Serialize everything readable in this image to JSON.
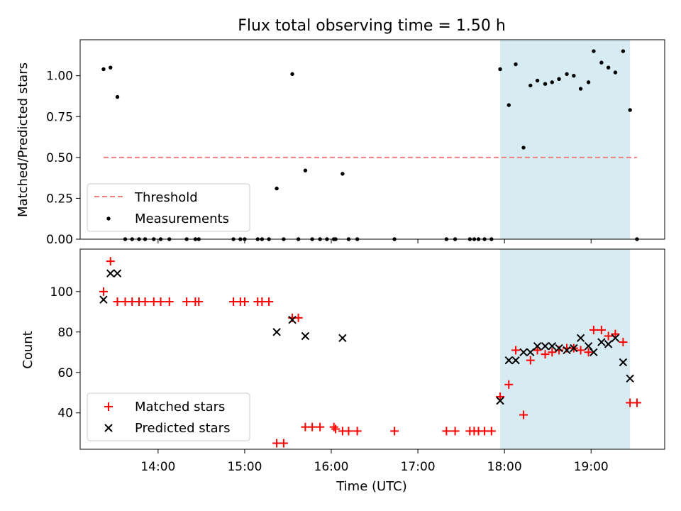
{
  "title": "Flux total observing time = 1.50 h",
  "colors": {
    "threshold": "#f08080",
    "shade": "#add8e6",
    "matched": "#ff0000",
    "predicted": "#000000",
    "measure": "#000000"
  },
  "chart_data": [
    {
      "type": "scatter",
      "ylabel": "Matched/Predicted stars",
      "xlim": [
        13.1,
        19.85
      ],
      "ylim": [
        0,
        1.22
      ],
      "yticks": [
        0,
        0.25,
        0.5,
        0.75,
        1.0
      ],
      "ytick_labels": [
        "0.00",
        "0.25",
        "0.50",
        "0.75",
        "1.00"
      ],
      "shaded_x_range": [
        17.95,
        19.45
      ],
      "threshold": {
        "label": "Threshold",
        "y": 0.5,
        "x_range": [
          13.37,
          19.53
        ]
      },
      "measurements_label": "Measurements",
      "measurements": [
        [
          13.37,
          1.04
        ],
        [
          13.45,
          1.05
        ],
        [
          13.53,
          0.87
        ],
        [
          13.62,
          0
        ],
        [
          13.7,
          0
        ],
        [
          13.78,
          0
        ],
        [
          13.85,
          0
        ],
        [
          13.95,
          0
        ],
        [
          14.03,
          0
        ],
        [
          14.13,
          0
        ],
        [
          14.33,
          0
        ],
        [
          14.43,
          0
        ],
        [
          14.47,
          0
        ],
        [
          14.87,
          0
        ],
        [
          14.95,
          0
        ],
        [
          15.0,
          0
        ],
        [
          15.15,
          0
        ],
        [
          15.2,
          0
        ],
        [
          15.28,
          0
        ],
        [
          15.37,
          0.31
        ],
        [
          15.45,
          0
        ],
        [
          15.55,
          1.01
        ],
        [
          15.62,
          0
        ],
        [
          15.7,
          0.42
        ],
        [
          15.78,
          0
        ],
        [
          15.87,
          0
        ],
        [
          15.95,
          0
        ],
        [
          16.03,
          0
        ],
        [
          16.05,
          0
        ],
        [
          16.13,
          0.4
        ],
        [
          16.2,
          0
        ],
        [
          16.3,
          0
        ],
        [
          16.73,
          0
        ],
        [
          17.33,
          0
        ],
        [
          17.43,
          0
        ],
        [
          17.6,
          0
        ],
        [
          17.65,
          0
        ],
        [
          17.7,
          0
        ],
        [
          17.77,
          0
        ],
        [
          17.85,
          0
        ],
        [
          17.95,
          1.04
        ],
        [
          18.05,
          0.82
        ],
        [
          18.13,
          1.07
        ],
        [
          18.22,
          0.56
        ],
        [
          18.3,
          0.94
        ],
        [
          18.38,
          0.97
        ],
        [
          18.47,
          0.95
        ],
        [
          18.55,
          0.96
        ],
        [
          18.63,
          0.98
        ],
        [
          18.72,
          1.01
        ],
        [
          18.8,
          1.0
        ],
        [
          18.88,
          0.92
        ],
        [
          18.97,
          0.96
        ],
        [
          19.03,
          1.15
        ],
        [
          19.12,
          1.08
        ],
        [
          19.2,
          1.05
        ],
        [
          19.28,
          1.02
        ],
        [
          19.37,
          1.15
        ],
        [
          19.45,
          0.79
        ],
        [
          19.53,
          0
        ]
      ],
      "legend": [
        "Threshold",
        "Measurements"
      ]
    },
    {
      "type": "scatter",
      "xlabel": "Time (UTC)",
      "ylabel": "Count",
      "xlim": [
        13.1,
        19.85
      ],
      "ylim": [
        22,
        121
      ],
      "yticks": [
        40,
        60,
        80,
        100
      ],
      "ytick_labels": [
        "40",
        "60",
        "80",
        "100"
      ],
      "xticks": [
        14,
        15,
        16,
        17,
        18,
        19
      ],
      "xtick_labels": [
        "14:00",
        "15:00",
        "16:00",
        "17:00",
        "18:00",
        "19:00"
      ],
      "shaded_x_range": [
        17.95,
        19.45
      ],
      "series": [
        {
          "name": "Matched stars",
          "marker": "+",
          "points": [
            [
              13.37,
              100
            ],
            [
              13.45,
              115
            ],
            [
              13.53,
              95
            ],
            [
              13.62,
              95
            ],
            [
              13.7,
              95
            ],
            [
              13.78,
              95
            ],
            [
              13.85,
              95
            ],
            [
              13.95,
              95
            ],
            [
              14.03,
              95
            ],
            [
              14.13,
              95
            ],
            [
              14.33,
              95
            ],
            [
              14.43,
              95
            ],
            [
              14.47,
              95
            ],
            [
              14.87,
              95
            ],
            [
              14.95,
              95
            ],
            [
              15.0,
              95
            ],
            [
              15.15,
              95
            ],
            [
              15.2,
              95
            ],
            [
              15.28,
              95
            ],
            [
              15.37,
              25
            ],
            [
              15.45,
              25
            ],
            [
              15.55,
              87
            ],
            [
              15.62,
              87
            ],
            [
              15.7,
              33
            ],
            [
              15.78,
              33
            ],
            [
              15.87,
              33
            ],
            [
              16.03,
              33
            ],
            [
              16.05,
              32
            ],
            [
              16.13,
              31
            ],
            [
              16.2,
              31
            ],
            [
              16.3,
              31
            ],
            [
              16.73,
              31
            ],
            [
              17.33,
              31
            ],
            [
              17.43,
              31
            ],
            [
              17.6,
              31
            ],
            [
              17.65,
              31
            ],
            [
              17.7,
              31
            ],
            [
              17.77,
              31
            ],
            [
              17.85,
              31
            ],
            [
              17.95,
              48
            ],
            [
              18.05,
              54
            ],
            [
              18.13,
              71
            ],
            [
              18.22,
              39
            ],
            [
              18.3,
              66
            ],
            [
              18.38,
              71
            ],
            [
              18.47,
              69
            ],
            [
              18.55,
              70
            ],
            [
              18.63,
              71
            ],
            [
              18.72,
              72
            ],
            [
              18.8,
              72
            ],
            [
              18.88,
              71
            ],
            [
              18.97,
              70
            ],
            [
              19.03,
              81
            ],
            [
              19.12,
              81
            ],
            [
              19.2,
              78
            ],
            [
              19.28,
              79
            ],
            [
              19.37,
              75
            ],
            [
              19.45,
              45
            ],
            [
              19.53,
              45
            ]
          ]
        },
        {
          "name": "Predicted stars",
          "marker": "x",
          "points": [
            [
              13.37,
              96
            ],
            [
              13.45,
              109
            ],
            [
              13.53,
              109
            ],
            [
              15.37,
              80
            ],
            [
              15.55,
              86
            ],
            [
              15.7,
              78
            ],
            [
              16.13,
              77
            ],
            [
              17.95,
              46
            ],
            [
              18.05,
              66
            ],
            [
              18.13,
              66
            ],
            [
              18.22,
              70
            ],
            [
              18.3,
              70
            ],
            [
              18.38,
              73
            ],
            [
              18.47,
              73
            ],
            [
              18.55,
              73
            ],
            [
              18.63,
              72
            ],
            [
              18.72,
              71
            ],
            [
              18.8,
              72
            ],
            [
              18.88,
              77
            ],
            [
              18.97,
              73
            ],
            [
              19.03,
              70
            ],
            [
              19.12,
              75
            ],
            [
              19.2,
              74
            ],
            [
              19.28,
              77
            ],
            [
              19.37,
              65
            ],
            [
              19.45,
              57
            ]
          ]
        }
      ],
      "legend": [
        "Matched stars",
        "Predicted stars"
      ]
    }
  ]
}
